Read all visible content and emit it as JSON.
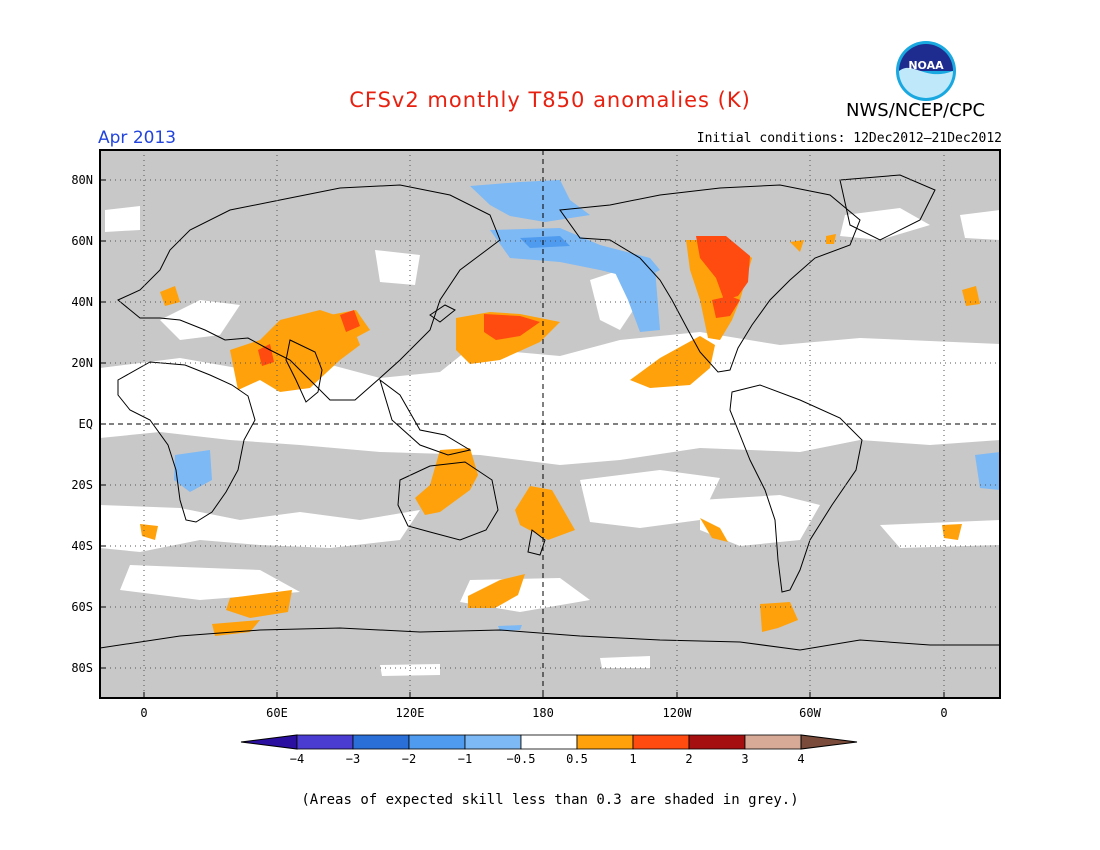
{
  "header": {
    "title": "CFSv2 monthly T850 anomalies (K)",
    "agency": "NWS/NCEP/CPC",
    "logo_text": "NOAA",
    "month": "Apr 2013",
    "initial_conditions": "Initial conditions: 12Dec2012–21Dec2012"
  },
  "axes": {
    "lat_labels": [
      "80N",
      "60N",
      "40N",
      "20N",
      "EQ",
      "20S",
      "40S",
      "60S",
      "80S"
    ],
    "lon_labels": [
      "0",
      "60E",
      "120E",
      "180",
      "120W",
      "60W",
      "0"
    ]
  },
  "legend": {
    "bin_labels": [
      "−4",
      "−3",
      "−2",
      "−1",
      "−0.5",
      "0.5",
      "1",
      "2",
      "3",
      "4"
    ],
    "colors": [
      "#2b0fa0",
      "#4a3cd0",
      "#2a6ed8",
      "#4f9bef",
      "#7db9f5",
      "#ffffff",
      "#ffa10a",
      "#ff4a10",
      "#a50f0f",
      "#d7aa98",
      "#7a4a3a"
    ]
  },
  "colors": {
    "grey_shade": "#c8c8c8",
    "accent_title": "#e8200f",
    "accent_month": "#2244dd"
  },
  "footnote": "(Areas of expected skill less than 0.3 are shaded in grey.)"
}
